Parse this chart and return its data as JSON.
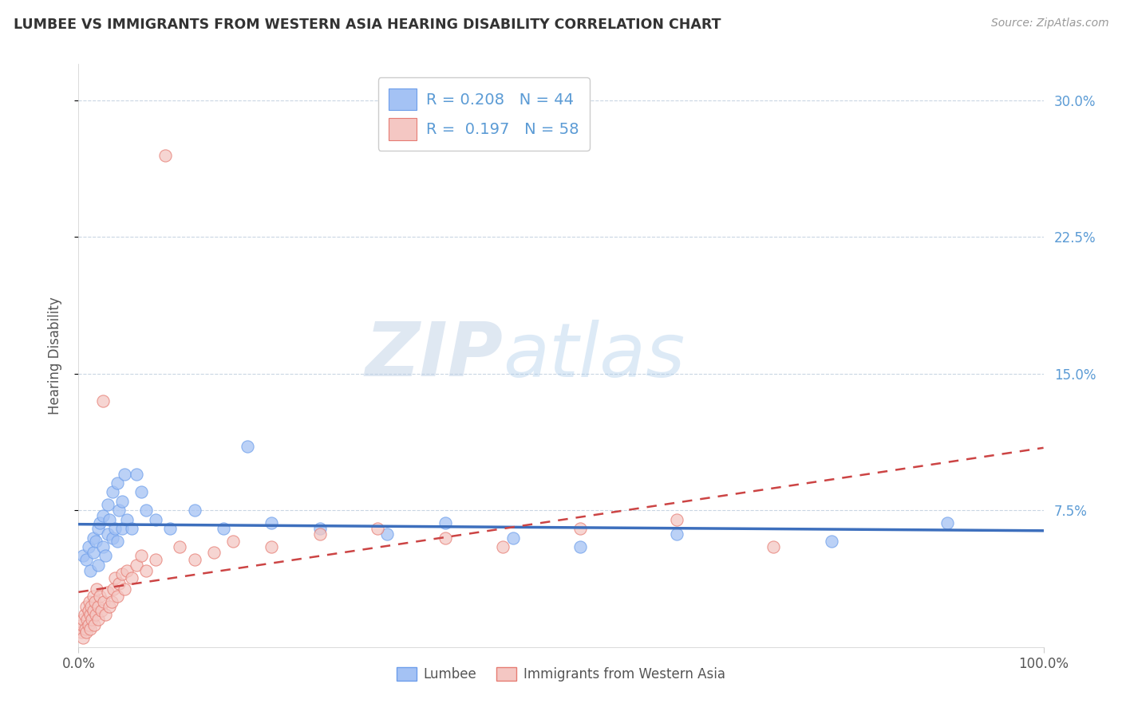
{
  "title": "LUMBEE VS IMMIGRANTS FROM WESTERN ASIA HEARING DISABILITY CORRELATION CHART",
  "source_text": "Source: ZipAtlas.com",
  "ylabel": "Hearing Disability",
  "blue_color": "#a4c2f4",
  "pink_color": "#f4c7c3",
  "blue_edge_color": "#6d9eeb",
  "pink_edge_color": "#e67c73",
  "blue_line_color": "#3d6fbd",
  "pink_line_color": "#cc4444",
  "watermark_zip": "ZIP",
  "watermark_atlas": "atlas",
  "background_color": "#ffffff",
  "grid_color": "#c9d6e3",
  "title_color": "#333333",
  "ylabel_color": "#555555",
  "right_tick_color": "#5b9bd5",
  "bottom_tick_color": "#555555",
  "lumbee_x": [
    0.005,
    0.008,
    0.01,
    0.012,
    0.015,
    0.015,
    0.018,
    0.02,
    0.02,
    0.022,
    0.025,
    0.025,
    0.028,
    0.03,
    0.03,
    0.032,
    0.035,
    0.035,
    0.038,
    0.04,
    0.04,
    0.042,
    0.045,
    0.045,
    0.048,
    0.05,
    0.055,
    0.06,
    0.065,
    0.07,
    0.08,
    0.095,
    0.12,
    0.15,
    0.175,
    0.2,
    0.25,
    0.32,
    0.38,
    0.45,
    0.52,
    0.62,
    0.78,
    0.9
  ],
  "lumbee_y": [
    0.05,
    0.048,
    0.055,
    0.042,
    0.06,
    0.052,
    0.058,
    0.065,
    0.045,
    0.068,
    0.072,
    0.055,
    0.05,
    0.078,
    0.062,
    0.07,
    0.085,
    0.06,
    0.065,
    0.09,
    0.058,
    0.075,
    0.08,
    0.065,
    0.095,
    0.07,
    0.065,
    0.095,
    0.085,
    0.075,
    0.07,
    0.065,
    0.075,
    0.065,
    0.11,
    0.068,
    0.065,
    0.062,
    0.068,
    0.06,
    0.055,
    0.062,
    0.058,
    0.068
  ],
  "immigrants_x": [
    0.002,
    0.003,
    0.004,
    0.005,
    0.005,
    0.006,
    0.007,
    0.008,
    0.008,
    0.009,
    0.01,
    0.01,
    0.011,
    0.012,
    0.012,
    0.013,
    0.014,
    0.015,
    0.015,
    0.016,
    0.017,
    0.018,
    0.019,
    0.02,
    0.02,
    0.022,
    0.024,
    0.025,
    0.026,
    0.028,
    0.03,
    0.032,
    0.034,
    0.036,
    0.038,
    0.04,
    0.042,
    0.045,
    0.048,
    0.05,
    0.055,
    0.06,
    0.065,
    0.07,
    0.08,
    0.09,
    0.105,
    0.12,
    0.14,
    0.16,
    0.2,
    0.25,
    0.31,
    0.38,
    0.44,
    0.52,
    0.62,
    0.72
  ],
  "immigrants_y": [
    0.01,
    0.008,
    0.012,
    0.015,
    0.005,
    0.018,
    0.01,
    0.022,
    0.008,
    0.015,
    0.02,
    0.012,
    0.025,
    0.018,
    0.01,
    0.022,
    0.015,
    0.028,
    0.02,
    0.012,
    0.025,
    0.018,
    0.032,
    0.022,
    0.015,
    0.028,
    0.02,
    0.135,
    0.025,
    0.018,
    0.03,
    0.022,
    0.025,
    0.032,
    0.038,
    0.028,
    0.035,
    0.04,
    0.032,
    0.042,
    0.038,
    0.045,
    0.05,
    0.042,
    0.048,
    0.27,
    0.055,
    0.048,
    0.052,
    0.058,
    0.055,
    0.062,
    0.065,
    0.06,
    0.055,
    0.065,
    0.07,
    0.055
  ],
  "xlim": [
    0.0,
    1.0
  ],
  "ylim": [
    0.0,
    0.32
  ],
  "yticks": [
    0.075,
    0.15,
    0.225,
    0.3
  ],
  "ytick_labels": [
    "7.5%",
    "15.0%",
    "22.5%",
    "30.0%"
  ],
  "xticks": [
    0.0,
    1.0
  ],
  "xtick_labels": [
    "0.0%",
    "100.0%"
  ]
}
